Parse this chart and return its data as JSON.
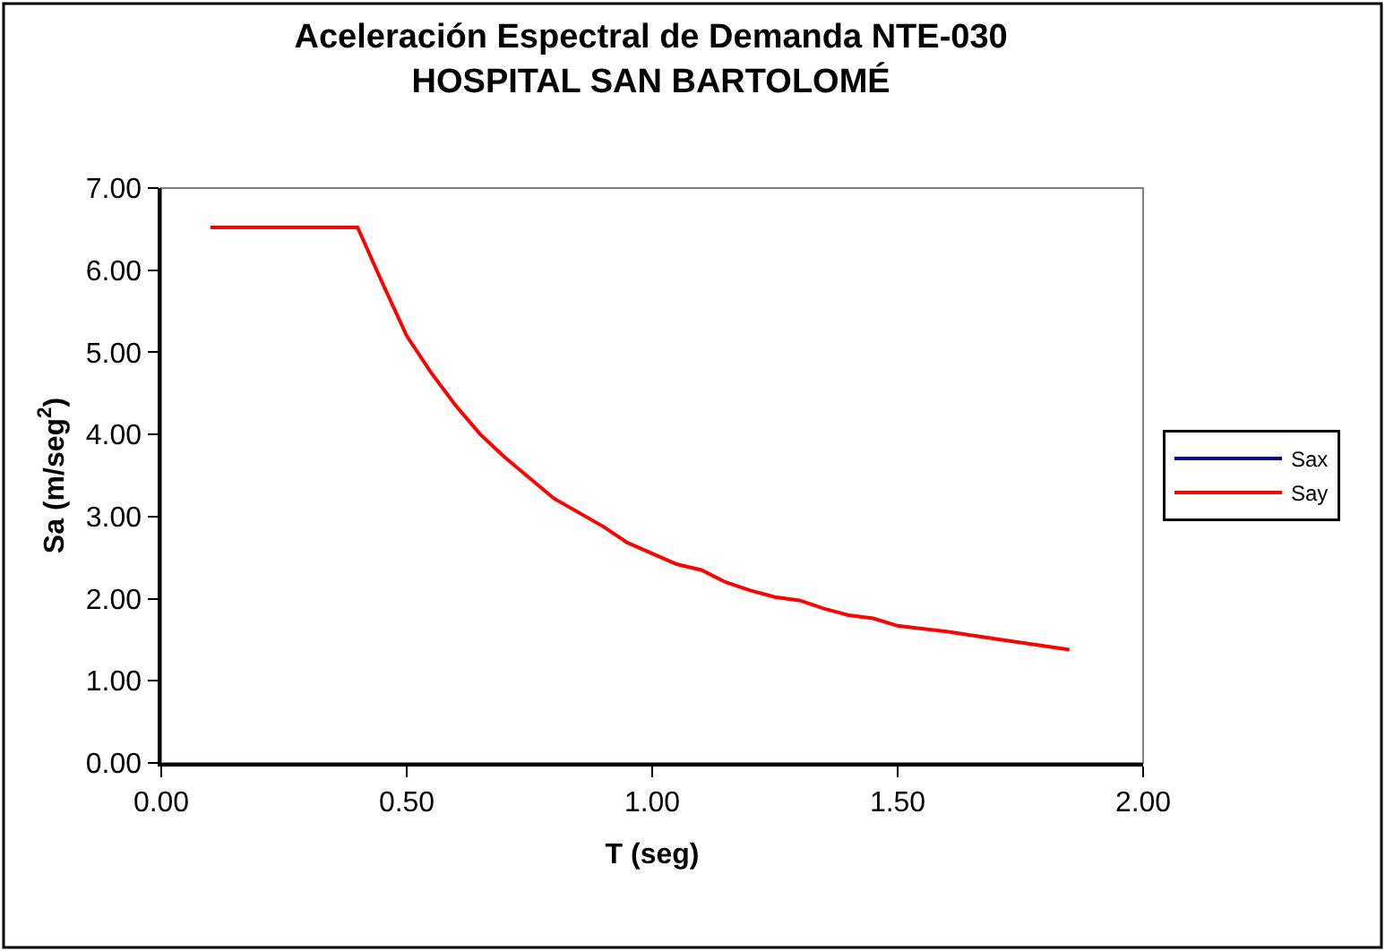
{
  "chart_data": {
    "type": "line",
    "title": "Aceleración Espectral de Demanda NTE-030\nHOSPITAL SAN BARTOLOMÉ",
    "xlabel": "T (seg)",
    "ylabel": "Sa (m/seg$^{2}$)",
    "x": [
      0.1,
      0.4,
      0.45,
      0.5,
      0.55,
      0.6,
      0.65,
      0.7,
      0.8,
      0.9,
      0.95,
      1.0,
      1.05,
      1.1,
      1.15,
      1.2,
      1.25,
      1.3,
      1.35,
      1.4,
      1.45,
      1.5,
      1.6,
      1.7,
      1.85
    ],
    "series": [
      {
        "name": "Sax",
        "color": "#000080",
        "values": [
          null,
          null,
          null,
          null,
          null,
          null,
          null,
          null,
          null,
          null,
          null,
          null,
          null,
          null,
          null,
          null,
          null,
          null,
          null,
          null,
          null,
          null,
          null,
          null,
          null
        ]
      },
      {
        "name": "Say",
        "color": "#ff0000",
        "values": [
          6.52,
          6.52,
          5.85,
          5.2,
          4.75,
          4.35,
          4.0,
          3.72,
          3.22,
          2.88,
          2.68,
          2.55,
          2.42,
          2.35,
          2.2,
          2.1,
          2.02,
          1.98,
          1.88,
          1.8,
          1.76,
          1.67,
          1.6,
          1.51,
          1.38
        ]
      }
    ],
    "xlim": [
      0,
      2
    ],
    "xticks": [
      {
        "value": 0,
        "label": "0.00"
      },
      {
        "value": 0.5,
        "label": "0.50"
      },
      {
        "value": 1,
        "label": "1.00"
      },
      {
        "value": 1.5,
        "label": "1.50"
      },
      {
        "value": 2,
        "label": "2.00"
      }
    ],
    "ylim": [
      0,
      7
    ],
    "yticks": [
      {
        "value": 0,
        "label": "0.00"
      },
      {
        "value": 1,
        "label": "1.00"
      },
      {
        "value": 2,
        "label": "2.00"
      },
      {
        "value": 3,
        "label": "3.00"
      },
      {
        "value": 4,
        "label": "4.00"
      },
      {
        "value": 5,
        "label": "5.00"
      },
      {
        "value": 6,
        "label": "6.00"
      },
      {
        "value": 7,
        "label": "7.00"
      }
    ],
    "grid": false,
    "legend": "right",
    "marker": "none",
    "line_style": "solid"
  }
}
